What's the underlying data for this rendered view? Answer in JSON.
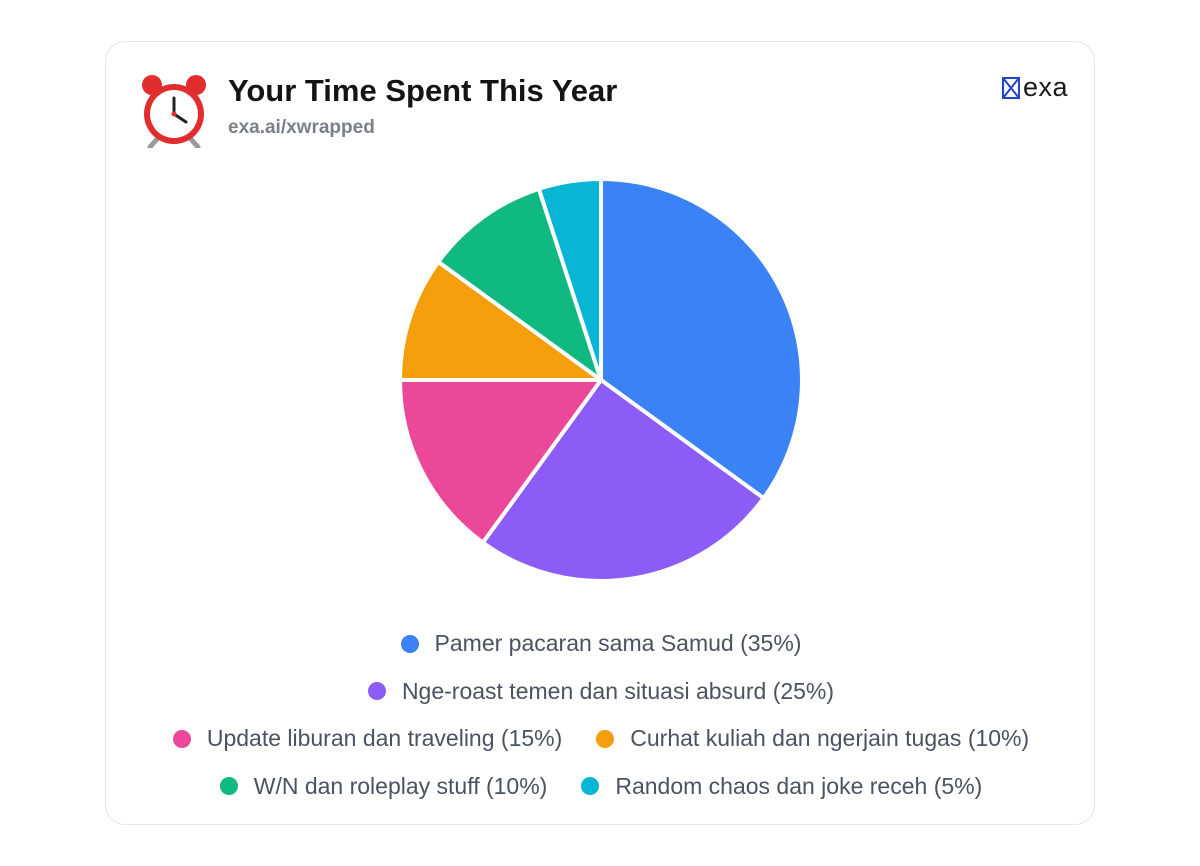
{
  "header": {
    "title": "Your Time Spent This Year",
    "subtitle": "exa.ai/xwrapped",
    "icon": "alarm-clock-icon",
    "brand": "exa"
  },
  "chart_data": {
    "type": "pie",
    "title": "Your Time Spent This Year",
    "legend_position": "bottom",
    "slices": [
      {
        "label": "Pamer pacaran sama Samud (35%)",
        "value": 35,
        "color": "#3b82f6"
      },
      {
        "label": "Nge-roast temen dan situasi absurd (25%)",
        "value": 25,
        "color": "#8b5cf6"
      },
      {
        "label": "Update liburan dan traveling (15%)",
        "value": 15,
        "color": "#ec4899"
      },
      {
        "label": "Curhat kuliah dan ngerjain tugas (10%)",
        "value": 10,
        "color": "#f59e0b"
      },
      {
        "label": "W/N dan roleplay stuff (10%)",
        "value": 10,
        "color": "#10b981"
      },
      {
        "label": "Random chaos dan joke receh (5%)",
        "value": 5,
        "color": "#06b6d4"
      }
    ]
  }
}
